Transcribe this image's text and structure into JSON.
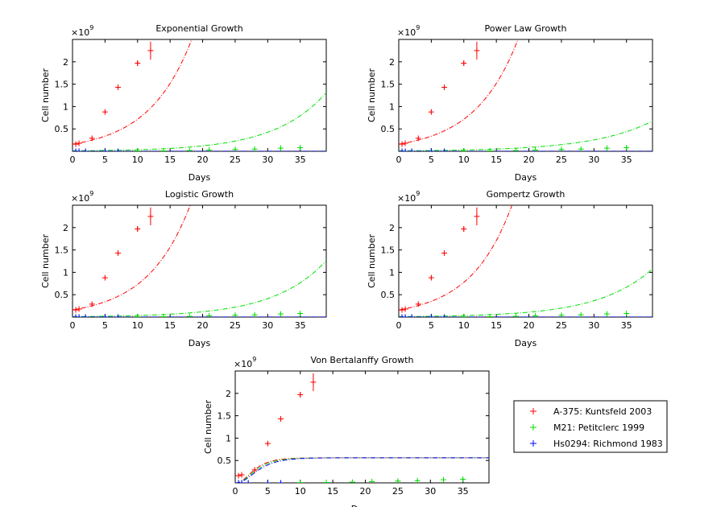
{
  "chart_data": [
    {
      "type": "scatter",
      "title": "Exponential Growth",
      "xlabel": "Days",
      "ylabel": "Cell number",
      "multiplier_base": "10",
      "multiplier_exp": "9",
      "xlim": [
        0,
        39
      ],
      "ylim": [
        0,
        2.5
      ],
      "xticks": [
        0,
        5,
        10,
        15,
        20,
        25,
        30,
        35
      ],
      "yticks": [
        0.5,
        1,
        1.5,
        2
      ],
      "model": "exponential"
    },
    {
      "type": "scatter",
      "title": "Power Law Growth",
      "xlabel": "Days",
      "ylabel": "Cell number",
      "multiplier_base": "10",
      "multiplier_exp": "9",
      "xlim": [
        0,
        39
      ],
      "ylim": [
        0,
        2.5
      ],
      "xticks": [
        0,
        5,
        10,
        15,
        20,
        25,
        30,
        35
      ],
      "yticks": [
        0.5,
        1,
        1.5,
        2
      ],
      "model": "power"
    },
    {
      "type": "scatter",
      "title": "Logistic Growth",
      "xlabel": "Days",
      "ylabel": "Cell number",
      "multiplier_base": "10",
      "multiplier_exp": "9",
      "xlim": [
        0,
        39
      ],
      "ylim": [
        0,
        2.5
      ],
      "xticks": [
        0,
        5,
        10,
        15,
        20,
        25,
        30,
        35
      ],
      "yticks": [
        0.5,
        1,
        1.5,
        2
      ],
      "model": "logistic"
    },
    {
      "type": "scatter",
      "title": "Gompertz Growth",
      "xlabel": "Days",
      "ylabel": "Cell number",
      "multiplier_base": "10",
      "multiplier_exp": "9",
      "xlim": [
        0,
        39
      ],
      "ylim": [
        0,
        2.5
      ],
      "xticks": [
        0,
        5,
        10,
        15,
        20,
        25,
        30,
        35
      ],
      "yticks": [
        0.5,
        1,
        1.5,
        2
      ],
      "model": "gompertz"
    },
    {
      "type": "scatter",
      "title": "Von Bertalanffy Growth",
      "xlabel": "Days",
      "ylabel": "Cell number",
      "multiplier_base": "10",
      "multiplier_exp": "9",
      "xlim": [
        0,
        39
      ],
      "ylim": [
        0,
        2.5
      ],
      "xticks": [
        0,
        5,
        10,
        15,
        20,
        25,
        30,
        35
      ],
      "yticks": [
        0.5,
        1,
        1.5,
        2
      ],
      "model": "bertalanffy"
    }
  ],
  "series": [
    {
      "name": "A-375: Kuntsfeld 2003",
      "color": "#ff0000",
      "points": [
        [
          0.5,
          0.16
        ],
        [
          1,
          0.18
        ],
        [
          3,
          0.29
        ],
        [
          5,
          0.88
        ],
        [
          7,
          1.43
        ],
        [
          10,
          1.97
        ],
        [
          12,
          2.25
        ]
      ],
      "errors": [
        0,
        0.02,
        0.03,
        0.04,
        0.05,
        0.06,
        0.2
      ]
    },
    {
      "name": "M21: Petitclerc 1999",
      "color": "#00dd00",
      "points": [
        [
          0.5,
          0.0
        ],
        [
          1,
          0.0
        ],
        [
          2,
          0.0
        ],
        [
          5,
          0.0
        ],
        [
          7,
          0.0
        ],
        [
          10,
          0.005
        ],
        [
          14,
          0.008
        ],
        [
          18,
          0.015
        ],
        [
          21,
          0.03
        ],
        [
          25,
          0.04
        ],
        [
          28,
          0.05
        ],
        [
          32,
          0.07
        ],
        [
          35,
          0.08
        ]
      ],
      "errors": [
        0,
        0,
        0,
        0,
        0,
        0,
        0.005,
        0.008,
        0.01,
        0.012,
        0.015,
        0.02,
        0.025
      ]
    },
    {
      "name": "Hs0294: Richmond 1983",
      "color": "#0000ff",
      "points": [
        [
          0.5,
          0.0
        ],
        [
          1,
          0.0
        ],
        [
          2,
          0.0
        ],
        [
          5,
          0.0
        ],
        [
          7,
          0.0
        ]
      ],
      "errors": [
        0,
        0,
        0,
        0,
        0
      ]
    }
  ],
  "fit_colors": {
    "a375": "#ff0000",
    "m21": "#00dd00",
    "hs0294": "#0000ff"
  }
}
